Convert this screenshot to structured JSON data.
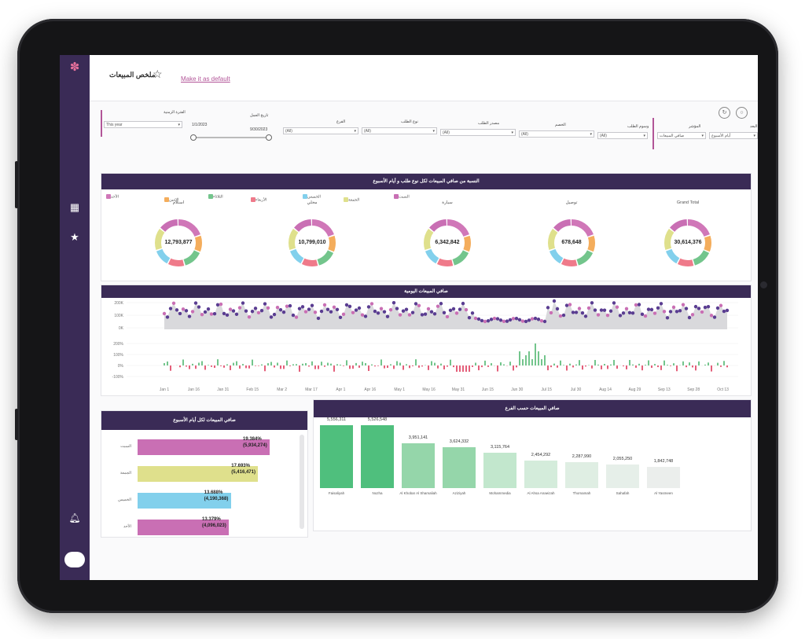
{
  "header": {
    "title": "ملخص المبيعات",
    "default_link": "Make it as default"
  },
  "colors": {
    "purple": "#3a2b56",
    "pink": "#d077b8",
    "orange": "#f4ad5c",
    "green": "#73c58c",
    "red": "#ef7a8a",
    "blue": "#82d0ec",
    "yellow": "#dfe08c",
    "magenta": "#c96fb4"
  },
  "filters": {
    "period": {
      "label": "الفترة الزمنية",
      "value": "This year"
    },
    "work_date": {
      "label": "تاريخ العمل",
      "from": "1/1/2023",
      "to": "9/30/2023"
    },
    "branch": {
      "label": "الفرع",
      "value": "(All)"
    },
    "order_type": {
      "label": "نوع الطلب",
      "value": "(All)"
    },
    "order_source": {
      "label": "مصدر الطلب",
      "value": "(All)"
    },
    "discount": {
      "label": "الخصم",
      "value": "(All)"
    },
    "order_tags": {
      "label": "وسوم الطلب",
      "value": "(All)"
    },
    "indicator": {
      "label": "المؤشر",
      "value": "صافي المبيعات"
    },
    "dimension": {
      "label": "البعد",
      "value": "أيام الأسبوع"
    }
  },
  "donut_panel": {
    "title": "النسبة من صافي المبيعات لكل نوع طلب و أيام الأسبوع",
    "legend": [
      "الأحد",
      "الإثنين",
      "الثلاثاء",
      "الأربعاء",
      "الخميس",
      "الجمعة",
      "السبت"
    ],
    "charts": [
      {
        "label": "استلام",
        "value": "12,793,877"
      },
      {
        "label": "محلي",
        "value": "10,799,010"
      },
      {
        "label": "سيارة",
        "value": "6,342,842"
      },
      {
        "label": "توصيل",
        "value": "678,648"
      },
      {
        "label": "Grand Total",
        "value": "30,614,376"
      }
    ]
  },
  "daily_panel": {
    "title": "صافي المبيعات اليومية",
    "y_ticks": [
      "200K",
      "100K",
      "0K"
    ],
    "pct_ticks": [
      "200%",
      "100%",
      "0%",
      "-100%"
    ],
    "x_ticks": [
      "Jan 1",
      "Jan 16",
      "Jan 31",
      "Feb 15",
      "Mar 2",
      "Mar 17",
      "Apr 1",
      "Apr 16",
      "May 1",
      "May 16",
      "May 31",
      "Jun 15",
      "Jun 30",
      "Jul 15",
      "Jul 30",
      "Aug 14",
      "Aug 29",
      "Sep 13",
      "Sep 28",
      "Oct 13"
    ]
  },
  "weekday_panel": {
    "title": "صافي المبيعات لكل أيام الأسبوع",
    "bars": [
      {
        "label": "السبت",
        "pct": "19.384%",
        "amount": "(5,934,274)",
        "frac": 0.194
      },
      {
        "label": "الجمعة",
        "pct": "17.693%",
        "amount": "(5,416,471)",
        "frac": 0.177
      },
      {
        "label": "الخميس",
        "pct": "13.688%",
        "amount": "(4,190,368)",
        "frac": 0.137
      },
      {
        "label": "الأحد",
        "pct": "13.379%",
        "amount": "(4,096,023)",
        "frac": 0.134
      }
    ]
  },
  "branch_panel": {
    "title": "صافي المبيعات حسب الفرع",
    "bars": [
      {
        "label": "Faisaliyah",
        "value": "5,556,311",
        "v": 5556311
      },
      {
        "label": "Nozha",
        "value": "5,526,548",
        "v": 5526548
      },
      {
        "label": "Al Khobar Al Shamaliah",
        "value": "3,951,141",
        "v": 3951141
      },
      {
        "label": "Aziziyah",
        "value": "3,624,332",
        "v": 3624332
      },
      {
        "label": "Mohammedia",
        "value": "3,115,764",
        "v": 3115764
      },
      {
        "label": "Al Ahsa Anaeizah",
        "value": "2,454,292",
        "v": 2454292
      },
      {
        "label": "Thomamah",
        "value": "2,287,990",
        "v": 2287990
      },
      {
        "label": "Sahafah",
        "value": "2,055,250",
        "v": 2055250
      },
      {
        "label": "Al Yasmeen",
        "value": "1,842,748",
        "v": 1842748
      }
    ]
  }
}
